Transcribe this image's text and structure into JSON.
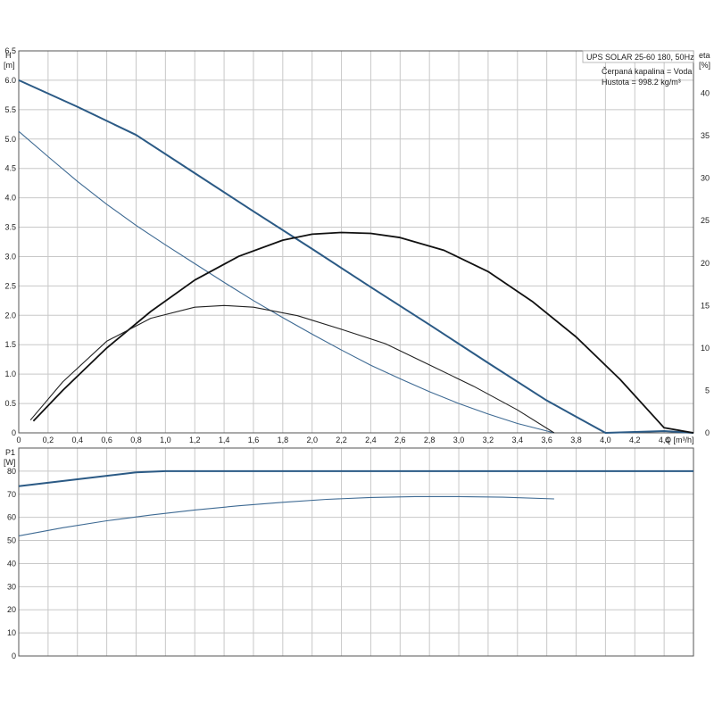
{
  "chart_data": [
    {
      "type": "line",
      "ylabel_line1": "H",
      "ylabel_line2": "[m]",
      "y2label_line1": "eta",
      "y2label_line2": "[%]",
      "xlabel": "Q [m³/h]",
      "xlim": [
        0,
        4.6
      ],
      "ylim": [
        0,
        6.5
      ],
      "y2lim": [
        0,
        45
      ],
      "x_ticks": [
        "0",
        "0,2",
        "0,4",
        "0,6",
        "0,8",
        "1,0",
        "1,2",
        "1,4",
        "1,6",
        "1,8",
        "2,0",
        "2,2",
        "2,4",
        "2,6",
        "2,8",
        "3,0",
        "3,2",
        "3,4",
        "3,6",
        "3,8",
        "4,0",
        "4,2",
        "4,4"
      ],
      "y_ticks": [
        "0",
        "0.5",
        "1.0",
        "1.5",
        "2.0",
        "2.5",
        "3.0",
        "3.5",
        "4.0",
        "4.5",
        "5.0",
        "5.5",
        "6.0",
        "6.5"
      ],
      "y2_ticks": [
        "0",
        "5",
        "10",
        "15",
        "20",
        "25",
        "30",
        "35",
        "40"
      ],
      "grid": true,
      "legend": {
        "title": "UPS SOLAR 25-60 180, 50Hz",
        "line2": "Čerpaná kapalina = Voda",
        "line3": "Hustota = 998.2 kg/m³"
      },
      "series": [
        {
          "axis": "left",
          "color": "#2b5a85",
          "width": 2,
          "x": [
            0,
            0.4,
            0.8,
            1.2,
            1.6,
            2.0,
            2.4,
            2.8,
            3.2,
            3.6,
            4.0,
            4.4,
            4.6
          ],
          "y": [
            6.0,
            5.55,
            5.07,
            4.42,
            3.77,
            3.13,
            2.48,
            1.84,
            1.19,
            0.55,
            -0.1,
            0.03,
            0.0
          ]
        },
        {
          "axis": "left",
          "color": "#3e6a93",
          "width": 1.1,
          "x": [
            0,
            0.2,
            0.4,
            0.6,
            0.8,
            1.0,
            1.2,
            1.4,
            1.6,
            1.8,
            2.0,
            2.2,
            2.4,
            2.6,
            2.8,
            3.0,
            3.2,
            3.4,
            3.65
          ],
          "y": [
            5.13,
            4.7,
            4.28,
            3.89,
            3.53,
            3.2,
            2.88,
            2.56,
            2.25,
            1.96,
            1.68,
            1.41,
            1.15,
            0.92,
            0.7,
            0.5,
            0.32,
            0.16,
            0.0
          ]
        },
        {
          "axis": "right",
          "color": "#111111",
          "width": 1.8,
          "x": [
            0.1,
            0.3,
            0.6,
            0.9,
            1.2,
            1.5,
            1.8,
            2.0,
            2.2,
            2.4,
            2.6,
            2.9,
            3.2,
            3.5,
            3.8,
            4.1,
            4.4,
            4.6
          ],
          "y": [
            1.4,
            5.0,
            10.0,
            14.3,
            18.0,
            20.8,
            22.7,
            23.4,
            23.6,
            23.5,
            23.0,
            21.5,
            19.0,
            15.5,
            11.3,
            6.3,
            0.6,
            0.0
          ]
        },
        {
          "axis": "right",
          "color": "#222222",
          "width": 1.1,
          "x": [
            0.08,
            0.3,
            0.6,
            0.9,
            1.2,
            1.4,
            1.6,
            1.9,
            2.2,
            2.5,
            2.8,
            3.1,
            3.4,
            3.65
          ],
          "y": [
            1.5,
            6.0,
            10.8,
            13.5,
            14.8,
            15.0,
            14.8,
            13.8,
            12.2,
            10.5,
            8.0,
            5.5,
            2.7,
            0.0
          ]
        }
      ]
    },
    {
      "type": "line",
      "ylabel_line1": "P1",
      "ylabel_line2": "[W]",
      "xlim": [
        0,
        4.6
      ],
      "ylim": [
        0,
        90
      ],
      "y_ticks": [
        "0",
        "10",
        "20",
        "30",
        "40",
        "50",
        "60",
        "70",
        "80"
      ],
      "grid": true,
      "series": [
        {
          "color": "#2b5a85",
          "width": 2,
          "x": [
            0,
            0.4,
            0.8,
            1.0,
            1.4,
            2.0,
            3.0,
            4.0,
            4.6
          ],
          "y": [
            73.5,
            76.5,
            79.5,
            80,
            80,
            80,
            80,
            80,
            80
          ]
        },
        {
          "color": "#3e6a93",
          "width": 1.1,
          "x": [
            0,
            0.3,
            0.6,
            0.9,
            1.2,
            1.5,
            1.8,
            2.1,
            2.4,
            2.7,
            3.0,
            3.3,
            3.65
          ],
          "y": [
            52,
            55.5,
            58.5,
            61,
            63.2,
            65,
            66.5,
            67.8,
            68.6,
            69,
            69,
            68.7,
            68
          ]
        }
      ]
    }
  ]
}
